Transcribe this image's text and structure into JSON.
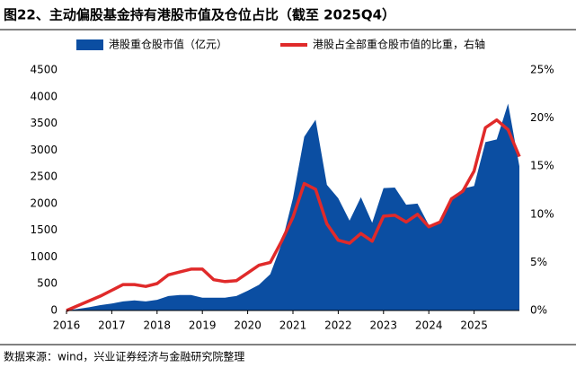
{
  "chart_data": {
    "type": "combo",
    "title": "图22、主动偏股基金持有港股市值及仓位占比（截至 2025Q4）",
    "source": "数据来源：wind，兴业证券经济与金融研究院整理",
    "x": [
      2016,
      2016.25,
      2016.5,
      2016.75,
      2017,
      2017.25,
      2017.5,
      2017.75,
      2018,
      2018.25,
      2018.5,
      2018.75,
      2019,
      2019.25,
      2019.5,
      2019.75,
      2020,
      2020.25,
      2020.5,
      2020.75,
      2021,
      2021.25,
      2021.5,
      2021.75,
      2022,
      2022.25,
      2022.5,
      2022.75,
      2023,
      2023.25,
      2023.5,
      2023.75,
      2024,
      2024.25,
      2024.5,
      2024.75,
      2025,
      2025.25,
      2025.5,
      2025.75,
      2026
    ],
    "xlim": [
      2016,
      2026
    ],
    "xticks": [
      2016,
      2017,
      2018,
      2019,
      2020,
      2021,
      2022,
      2023,
      2024,
      2025
    ],
    "ylim": [
      0,
      4500
    ],
    "yticks": [
      0,
      500,
      1000,
      1500,
      2000,
      2500,
      3000,
      3500,
      4000,
      4500
    ],
    "y2lim": [
      0,
      25
    ],
    "y2ticks": [
      {
        "value": 0,
        "label": "0%"
      },
      {
        "value": 5,
        "label": "5%"
      },
      {
        "value": 10,
        "label": "10%"
      },
      {
        "value": 15,
        "label": "15%"
      },
      {
        "value": 20,
        "label": "20%"
      },
      {
        "value": 25,
        "label": "25%"
      }
    ],
    "series": [
      {
        "name": "港股重仓股市值（亿元）",
        "type": "area",
        "color": "#0b4ea2",
        "values": [
          0,
          30,
          60,
          100,
          130,
          170,
          190,
          170,
          200,
          270,
          290,
          290,
          240,
          240,
          240,
          270,
          370,
          480,
          680,
          1250,
          2100,
          3250,
          3570,
          2350,
          2100,
          1680,
          2120,
          1640,
          2290,
          2300,
          1980,
          2000,
          1600,
          1650,
          2050,
          2280,
          2330,
          3150,
          3200,
          3870,
          2700
        ]
      },
      {
        "name": "港股占全部重仓股市值的比重，右轴",
        "type": "line",
        "axis": "y2",
        "color": "#e02a2a",
        "values": [
          0,
          0.5,
          1.0,
          1.5,
          2.1,
          2.7,
          2.7,
          2.5,
          2.8,
          3.7,
          4.0,
          4.3,
          4.3,
          3.2,
          3.0,
          3.1,
          3.9,
          4.7,
          5.0,
          7.2,
          9.7,
          13.2,
          12.6,
          9.0,
          7.3,
          7.0,
          8.0,
          7.2,
          9.8,
          9.9,
          9.2,
          10.0,
          8.7,
          9.2,
          11.6,
          12.4,
          14.5,
          19.0,
          19.8,
          18.8,
          16.0
        ]
      }
    ]
  }
}
